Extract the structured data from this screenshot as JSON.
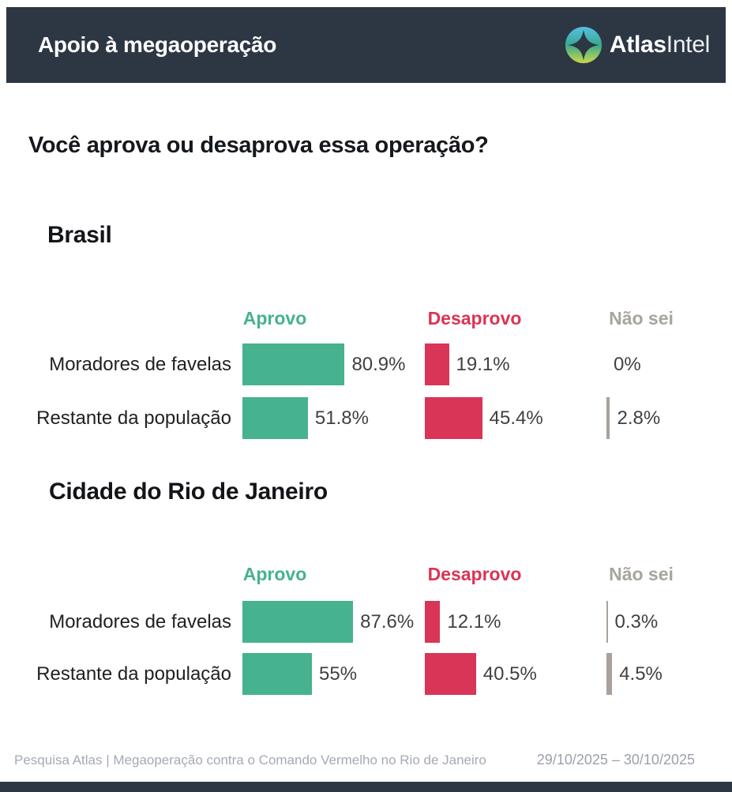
{
  "header": {
    "title": "Apoio à megaoperação",
    "brand": {
      "bold": "Atlas",
      "light": "Intel"
    }
  },
  "question": "Você aprova ou desaprova essa operação?",
  "colors": {
    "header_bg": "#2d3744",
    "approve": "#46b28f",
    "disapprove": "#d93556",
    "unsure_bar": "#a9a19a",
    "unsure_text": "#a8a49e",
    "logo_blue": "#55bfe8",
    "logo_green": "#3aa98e",
    "logo_yellow": "#c9d94a"
  },
  "chart_data": [
    {
      "type": "bar",
      "orientation": "horizontal",
      "title": "Brasil",
      "legend": [
        "Aprovo",
        "Desaprovo",
        "Não sei"
      ],
      "legend_position": "top",
      "grid": false,
      "xlim": [
        0,
        100
      ],
      "categories": [
        "Moradores de favelas",
        "Restante da população"
      ],
      "series": [
        {
          "name": "Aprovo",
          "values": [
            80.9,
            51.8
          ],
          "display": [
            "80.9%",
            "51.8%"
          ]
        },
        {
          "name": "Desaprovo",
          "values": [
            19.1,
            45.4
          ],
          "display": [
            "19.1%",
            "45.4%"
          ]
        },
        {
          "name": "Não sei",
          "values": [
            0,
            2.8
          ],
          "display": [
            "0%",
            "2.8%"
          ]
        }
      ]
    },
    {
      "type": "bar",
      "orientation": "horizontal",
      "title": "Cidade do Rio de Janeiro",
      "legend": [
        "Aprovo",
        "Desaprovo",
        "Não sei"
      ],
      "legend_position": "top",
      "grid": false,
      "xlim": [
        0,
        100
      ],
      "categories": [
        "Moradores de favelas",
        "Restante da população"
      ],
      "series": [
        {
          "name": "Aprovo",
          "values": [
            87.6,
            55
          ],
          "display": [
            "87.6%",
            "55%"
          ]
        },
        {
          "name": "Desaprovo",
          "values": [
            12.1,
            40.5
          ],
          "display": [
            "12.1%",
            "40.5%"
          ]
        },
        {
          "name": "Não sei",
          "values": [
            0.3,
            4.5
          ],
          "display": [
            "0.3%",
            "4.5%"
          ]
        }
      ]
    }
  ],
  "footer": {
    "source": "Pesquisa Atlas | Megaoperação contra o Comando Vermelho no Rio de Janeiro",
    "dates": "29/10/2025 – 30/10/2025"
  }
}
